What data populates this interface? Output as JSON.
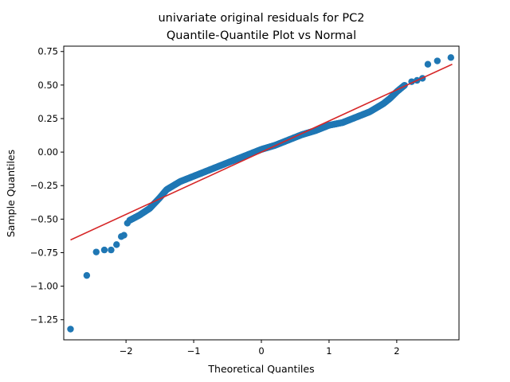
{
  "chart_data": {
    "type": "scatter",
    "title": "univariate original residuals for PC2",
    "subtitle": "Quantile-Quantile Plot vs Normal",
    "xlabel": "Theoretical Quantiles",
    "ylabel": "Sample Quantiles",
    "xlim": [
      -2.92,
      2.92
    ],
    "ylim": [
      -1.4,
      0.79
    ],
    "xticks": [
      -2,
      -1,
      0,
      1,
      2
    ],
    "xtick_labels": [
      "−2",
      "−1",
      "0",
      "1",
      "2"
    ],
    "yticks": [
      -1.25,
      -1.0,
      -0.75,
      -0.5,
      -0.25,
      0.0,
      0.25,
      0.5,
      0.75
    ],
    "ytick_labels": [
      "−1.25",
      "−1.00",
      "−0.75",
      "−0.50",
      "−0.25",
      "0.00",
      "0.25",
      "0.50",
      "0.75"
    ],
    "grid": false,
    "marker_color": "#1f77b4",
    "line_color": "#d62728",
    "reference_line": {
      "x": [
        -2.82,
        2.82
      ],
      "y": [
        -0.655,
        0.655
      ]
    },
    "outliers": {
      "x": [
        -2.82,
        -2.58,
        -2.44,
        -2.32,
        -2.22,
        -2.14,
        -2.07,
        -2.03,
        -1.98,
        2.22,
        2.3,
        2.38,
        2.46,
        2.6,
        2.8
      ],
      "y": [
        -1.32,
        -0.92,
        -0.745,
        -0.73,
        -0.73,
        -0.69,
        -0.63,
        -0.62,
        -0.53,
        0.525,
        0.535,
        0.55,
        0.655,
        0.68,
        0.705
      ]
    },
    "body_curve": {
      "x": [
        -1.95,
        -1.8,
        -1.65,
        -1.5,
        -1.4,
        -1.3,
        -1.2,
        -1.0,
        -0.8,
        -0.6,
        -0.4,
        -0.2,
        0.0,
        0.2,
        0.4,
        0.6,
        0.8,
        1.0,
        1.2,
        1.4,
        1.6,
        1.8,
        1.9,
        2.0,
        2.12
      ],
      "y": [
        -0.51,
        -0.47,
        -0.42,
        -0.34,
        -0.28,
        -0.25,
        -0.22,
        -0.18,
        -0.14,
        -0.1,
        -0.06,
        -0.02,
        0.02,
        0.05,
        0.09,
        0.13,
        0.16,
        0.2,
        0.22,
        0.26,
        0.3,
        0.36,
        0.4,
        0.45,
        0.5
      ]
    },
    "body_points": 520
  }
}
